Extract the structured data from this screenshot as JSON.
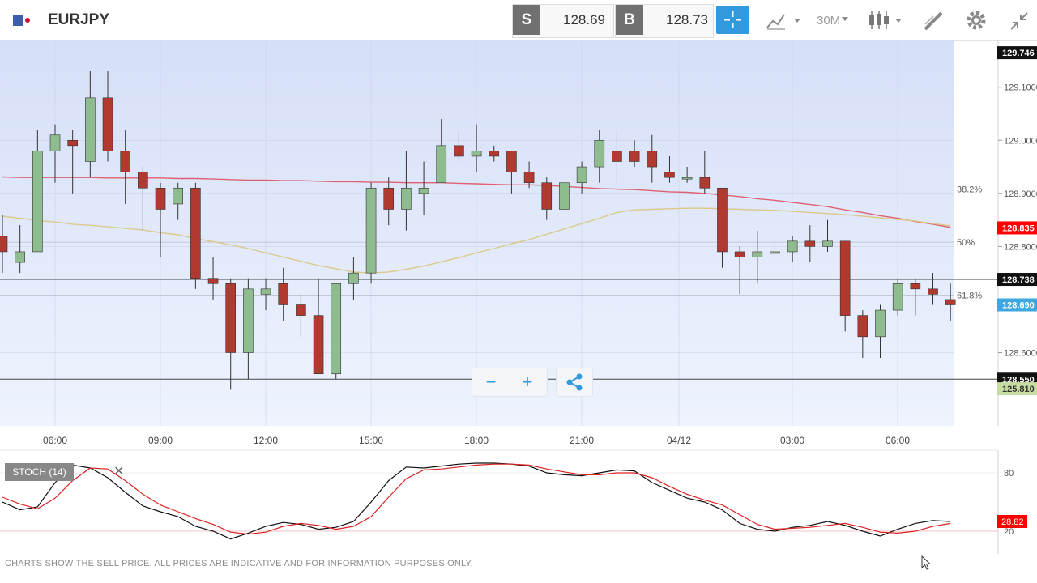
{
  "header": {
    "symbol": "EURJPY",
    "sell_letter": "S",
    "sell_price": "128.69",
    "buy_letter": "B",
    "buy_price": "128.73",
    "timeframe": "30M"
  },
  "colors": {
    "bull": "#8fbc8f",
    "bear": "#b03a30",
    "ma_red": "#e06070",
    "ma_yellow": "#d9c98a",
    "accent": "#3399dd",
    "stoch_k": "#111111",
    "stoch_d": "#dd2222"
  },
  "icons": {
    "flag": "eu-flag-icon",
    "crosshair": "crosshair-icon",
    "chart_type": "line-chart-icon",
    "candles": "candlestick-icon",
    "draw": "pencil-icon",
    "settings": "gear-icon",
    "fullscreen": "collapse-icon",
    "share": "share-icon"
  },
  "chart_data": [
    {
      "type": "candlestick",
      "title": "EURJPY",
      "x_tick_labels": [
        "06:00",
        "09:00",
        "12:00",
        "15:00",
        "18:00",
        "21:00",
        "04/12",
        "03:00",
        "06:00"
      ],
      "y_tick_labels": [
        "129.1000",
        "129.0000",
        "128.9000",
        "128.8000",
        "128.6000"
      ],
      "y_ticks": [
        129.1,
        129.0,
        128.9,
        128.8,
        128.6
      ],
      "ylim": [
        128.465,
        129.185
      ],
      "price_tags": [
        {
          "label": "129.746",
          "value": 129.165,
          "color": "#111111"
        },
        {
          "label": "128.835",
          "value": 128.835,
          "color": "#ff0000"
        },
        {
          "label": "128.738",
          "value": 128.738,
          "color": "#111111"
        },
        {
          "label": "128.690",
          "value": 128.69,
          "color": "#3fa7e0"
        },
        {
          "label": "128.550",
          "value": 128.55,
          "color": "#111111"
        },
        {
          "label": "125.810",
          "value": 128.532,
          "color": "#c7dca0"
        }
      ],
      "fib_levels": [
        {
          "label": "38.2%",
          "value": 128.908
        },
        {
          "label": "50%",
          "value": 128.808
        },
        {
          "label": "61.8%",
          "value": 128.708
        }
      ],
      "horizontal_lines": [
        128.738,
        128.55
      ],
      "candles": [
        {
          "o": 128.82,
          "h": 128.86,
          "l": 128.75,
          "c": 128.79
        },
        {
          "o": 128.77,
          "h": 128.84,
          "l": 128.75,
          "c": 128.79
        },
        {
          "o": 128.79,
          "h": 129.02,
          "l": 128.79,
          "c": 128.98
        },
        {
          "o": 128.98,
          "h": 129.03,
          "l": 128.92,
          "c": 129.01
        },
        {
          "o": 129.0,
          "h": 129.02,
          "l": 128.9,
          "c": 128.99
        },
        {
          "o": 128.96,
          "h": 129.13,
          "l": 128.93,
          "c": 129.08
        },
        {
          "o": 129.08,
          "h": 129.13,
          "l": 128.96,
          "c": 128.98
        },
        {
          "o": 128.98,
          "h": 129.02,
          "l": 128.88,
          "c": 128.94
        },
        {
          "o": 128.94,
          "h": 128.95,
          "l": 128.83,
          "c": 128.91
        },
        {
          "o": 128.91,
          "h": 128.92,
          "l": 128.78,
          "c": 128.87
        },
        {
          "o": 128.88,
          "h": 128.92,
          "l": 128.85,
          "c": 128.91
        },
        {
          "o": 128.91,
          "h": 128.92,
          "l": 128.72,
          "c": 128.74
        },
        {
          "o": 128.74,
          "h": 128.78,
          "l": 128.7,
          "c": 128.73
        },
        {
          "o": 128.73,
          "h": 128.74,
          "l": 128.53,
          "c": 128.6
        },
        {
          "o": 128.6,
          "h": 128.74,
          "l": 128.55,
          "c": 128.72
        },
        {
          "o": 128.71,
          "h": 128.74,
          "l": 128.68,
          "c": 128.72
        },
        {
          "o": 128.73,
          "h": 128.76,
          "l": 128.66,
          "c": 128.69
        },
        {
          "o": 128.69,
          "h": 128.71,
          "l": 128.63,
          "c": 128.67
        },
        {
          "o": 128.67,
          "h": 128.74,
          "l": 128.56,
          "c": 128.56
        },
        {
          "o": 128.56,
          "h": 128.73,
          "l": 128.55,
          "c": 128.73
        },
        {
          "o": 128.73,
          "h": 128.78,
          "l": 128.7,
          "c": 128.75
        },
        {
          "o": 128.75,
          "h": 128.92,
          "l": 128.73,
          "c": 128.91
        },
        {
          "o": 128.91,
          "h": 128.93,
          "l": 128.84,
          "c": 128.87
        },
        {
          "o": 128.87,
          "h": 128.98,
          "l": 128.83,
          "c": 128.91
        },
        {
          "o": 128.9,
          "h": 128.96,
          "l": 128.86,
          "c": 128.91
        },
        {
          "o": 128.92,
          "h": 129.04,
          "l": 128.92,
          "c": 128.99
        },
        {
          "o": 128.99,
          "h": 129.02,
          "l": 128.96,
          "c": 128.97
        },
        {
          "o": 128.97,
          "h": 129.03,
          "l": 128.94,
          "c": 128.98
        },
        {
          "o": 128.98,
          "h": 128.99,
          "l": 128.96,
          "c": 128.97
        },
        {
          "o": 128.98,
          "h": 128.98,
          "l": 128.9,
          "c": 128.94
        },
        {
          "o": 128.94,
          "h": 128.96,
          "l": 128.91,
          "c": 128.92
        },
        {
          "o": 128.92,
          "h": 128.93,
          "l": 128.85,
          "c": 128.87
        },
        {
          "o": 128.87,
          "h": 128.92,
          "l": 128.87,
          "c": 128.92
        },
        {
          "o": 128.92,
          "h": 128.96,
          "l": 128.9,
          "c": 128.95
        },
        {
          "o": 128.95,
          "h": 129.02,
          "l": 128.92,
          "c": 129.0
        },
        {
          "o": 128.98,
          "h": 129.02,
          "l": 128.92,
          "c": 128.96
        },
        {
          "o": 128.98,
          "h": 129.0,
          "l": 128.95,
          "c": 128.96
        },
        {
          "o": 128.98,
          "h": 129.01,
          "l": 128.92,
          "c": 128.95
        },
        {
          "o": 128.94,
          "h": 128.97,
          "l": 128.92,
          "c": 128.93
        },
        {
          "o": 128.93,
          "h": 128.95,
          "l": 128.92,
          "c": 128.93
        },
        {
          "o": 128.93,
          "h": 128.98,
          "l": 128.9,
          "c": 128.91
        },
        {
          "o": 128.91,
          "h": 128.91,
          "l": 128.76,
          "c": 128.79
        },
        {
          "o": 128.79,
          "h": 128.8,
          "l": 128.71,
          "c": 128.78
        },
        {
          "o": 128.78,
          "h": 128.83,
          "l": 128.73,
          "c": 128.79
        },
        {
          "o": 128.79,
          "h": 128.82,
          "l": 128.79,
          "c": 128.79
        },
        {
          "o": 128.79,
          "h": 128.82,
          "l": 128.77,
          "c": 128.81
        },
        {
          "o": 128.81,
          "h": 128.84,
          "l": 128.77,
          "c": 128.8
        },
        {
          "o": 128.8,
          "h": 128.85,
          "l": 128.79,
          "c": 128.81
        },
        {
          "o": 128.81,
          "h": 128.81,
          "l": 128.64,
          "c": 128.67
        },
        {
          "o": 128.67,
          "h": 128.68,
          "l": 128.59,
          "c": 128.63
        },
        {
          "o": 128.63,
          "h": 128.69,
          "l": 128.59,
          "c": 128.68
        },
        {
          "o": 128.68,
          "h": 128.74,
          "l": 128.67,
          "c": 128.73
        },
        {
          "o": 128.73,
          "h": 128.74,
          "l": 128.67,
          "c": 128.72
        },
        {
          "o": 128.72,
          "h": 128.75,
          "l": 128.69,
          "c": 128.71
        },
        {
          "o": 128.7,
          "h": 128.73,
          "l": 128.66,
          "c": 128.69
        }
      ],
      "moving_averages": [
        {
          "color": "#e06070",
          "values": [
            128.931,
            128.93,
            128.93,
            128.93,
            128.93,
            128.93,
            128.929,
            128.929,
            128.929,
            128.929,
            128.928,
            128.928,
            128.927,
            128.926,
            128.925,
            128.925,
            128.924,
            128.924,
            128.923,
            128.922,
            128.922,
            128.921,
            128.921,
            128.92,
            128.92,
            128.92,
            128.919,
            128.918,
            128.917,
            128.916,
            128.916,
            128.915,
            128.913,
            128.911,
            128.909,
            128.908,
            128.907,
            128.905,
            128.903,
            128.902,
            128.9,
            128.897,
            128.894,
            128.89,
            128.887,
            128.883,
            128.879,
            128.875,
            128.869,
            128.864,
            128.858,
            128.853,
            128.847,
            128.842,
            128.836
          ]
        },
        {
          "color": "#d9c98a",
          "values": [
            128.857,
            128.853,
            128.849,
            128.846,
            128.842,
            128.84,
            128.837,
            128.834,
            128.831,
            128.826,
            128.822,
            128.815,
            128.809,
            128.803,
            128.796,
            128.788,
            128.78,
            128.772,
            128.764,
            128.758,
            128.752,
            128.75,
            128.752,
            128.757,
            128.763,
            128.771,
            128.779,
            128.788,
            128.796,
            128.805,
            128.813,
            128.823,
            128.833,
            128.843,
            128.853,
            128.864,
            128.869,
            128.87,
            128.871,
            128.872,
            128.872,
            128.871,
            128.87,
            128.869,
            128.868,
            128.866,
            128.864,
            128.862,
            128.86,
            128.857,
            128.854,
            128.851,
            128.848,
            128.843,
            128.839
          ]
        }
      ]
    },
    {
      "type": "line",
      "title": "STOCH (14)",
      "y_tick_labels": [
        "80",
        "20"
      ],
      "y_ticks": [
        80,
        20
      ],
      "ylim": [
        0,
        100
      ],
      "value_tag": "28.82",
      "series": [
        {
          "color": "#111111",
          "values": [
            50,
            42,
            45,
            70,
            88,
            85,
            75,
            60,
            46,
            40,
            35,
            25,
            20,
            12,
            18,
            25,
            29,
            27,
            22,
            24,
            30,
            50,
            72,
            86,
            85,
            87,
            89,
            90,
            90,
            89,
            87,
            80,
            78,
            77,
            80,
            83,
            82,
            70,
            62,
            54,
            50,
            42,
            28,
            22,
            20,
            24,
            26,
            30,
            26,
            20,
            15,
            22,
            28,
            31,
            30
          ]
        },
        {
          "color": "#dd2222",
          "values": [
            55,
            48,
            43,
            54,
            72,
            85,
            84,
            72,
            58,
            47,
            40,
            33,
            27,
            19,
            17,
            19,
            25,
            28,
            26,
            22,
            25,
            35,
            55,
            74,
            83,
            84,
            86,
            88,
            89,
            89,
            88,
            84,
            81,
            78,
            78,
            80,
            80,
            75,
            66,
            58,
            52,
            47,
            37,
            27,
            22,
            23,
            24,
            26,
            28,
            24,
            19,
            18,
            20,
            25,
            28
          ]
        }
      ]
    }
  ],
  "zoom": {
    "minus": "−",
    "plus": "+"
  },
  "stoch_label": "STOCH (14)",
  "close_x": "✕",
  "disclaimer": "CHARTS SHOW THE SELL PRICE. ALL PRICES ARE INDICATIVE AND FOR INFORMATION PURPOSES ONLY."
}
